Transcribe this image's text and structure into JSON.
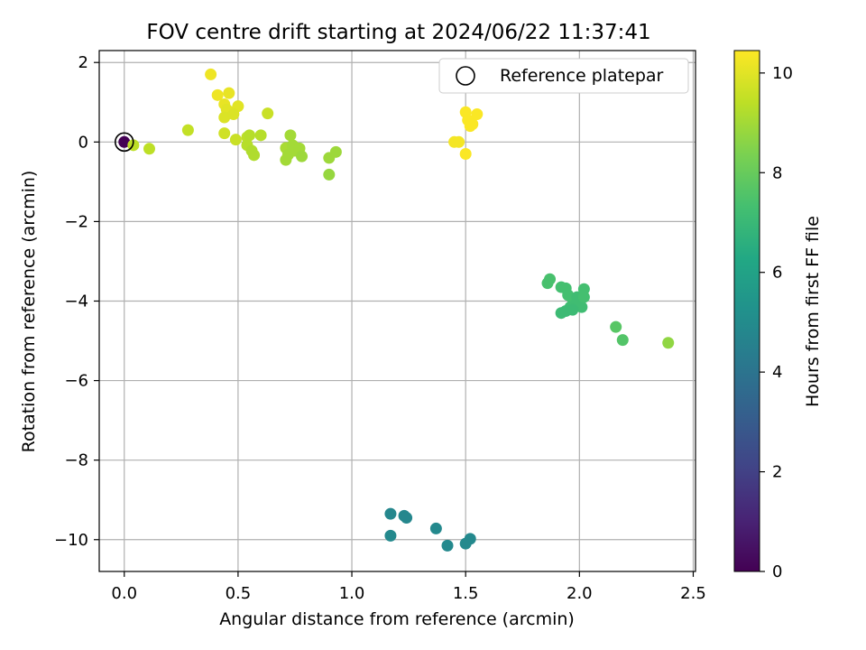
{
  "chart_data": {
    "type": "scatter",
    "title": "FOV centre drift starting at 2024/06/22 11:37:41",
    "xlabel": "Angular distance from reference (arcmin)",
    "ylabel": "Rotation from reference (arcmin)",
    "xlim": [
      -0.11,
      2.51
    ],
    "ylim": [
      -10.8,
      2.3
    ],
    "xticks": [
      0.0,
      0.5,
      1.0,
      1.5,
      2.0,
      2.5
    ],
    "xtick_labels": [
      "0.0",
      "0.5",
      "1.0",
      "1.5",
      "2.0",
      "2.5"
    ],
    "yticks": [
      2,
      0,
      -2,
      -4,
      -6,
      -8,
      -10
    ],
    "ytick_labels": [
      "2",
      "0",
      "−2",
      "−4",
      "−6",
      "−8",
      "−10"
    ],
    "grid": true,
    "legend": {
      "placement": "top-right",
      "entries": [
        "Reference platepar"
      ]
    },
    "reference_point": {
      "x": 0.0,
      "y": 0.0
    },
    "colorbar": {
      "label": "Hours from first FF file",
      "colormap": "viridis",
      "range": [
        0,
        10.45
      ],
      "ticks": [
        0,
        2,
        4,
        6,
        8,
        10
      ],
      "tick_labels": [
        "0",
        "2",
        "4",
        "6",
        "8",
        "10"
      ]
    },
    "series": [
      {
        "color_by": "hours",
        "points": [
          {
            "x": 0.0,
            "y": 0.0,
            "c": 0.0
          },
          {
            "x": 0.04,
            "y": -0.08,
            "c": 9.4
          },
          {
            "x": 0.11,
            "y": -0.17,
            "c": 9.4
          },
          {
            "x": 0.28,
            "y": 0.3,
            "c": 9.5
          },
          {
            "x": 0.38,
            "y": 1.7,
            "c": 10.2
          },
          {
            "x": 0.41,
            "y": 1.18,
            "c": 10.2
          },
          {
            "x": 0.44,
            "y": 0.95,
            "c": 10.1
          },
          {
            "x": 0.46,
            "y": 1.23,
            "c": 10.1
          },
          {
            "x": 0.45,
            "y": 0.82,
            "c": 10.0
          },
          {
            "x": 0.47,
            "y": 0.75,
            "c": 10.0
          },
          {
            "x": 0.5,
            "y": 0.9,
            "c": 10.0
          },
          {
            "x": 0.44,
            "y": 0.62,
            "c": 9.9
          },
          {
            "x": 0.48,
            "y": 0.7,
            "c": 9.9
          },
          {
            "x": 0.44,
            "y": 0.22,
            "c": 9.7
          },
          {
            "x": 0.49,
            "y": 0.06,
            "c": 9.6
          },
          {
            "x": 0.54,
            "y": 0.12,
            "c": 9.4
          },
          {
            "x": 0.55,
            "y": 0.17,
            "c": 9.3
          },
          {
            "x": 0.54,
            "y": -0.08,
            "c": 9.3
          },
          {
            "x": 0.56,
            "y": -0.22,
            "c": 9.2
          },
          {
            "x": 0.57,
            "y": -0.33,
            "c": 9.2
          },
          {
            "x": 0.6,
            "y": 0.17,
            "c": 9.3
          },
          {
            "x": 0.63,
            "y": 0.72,
            "c": 9.6
          },
          {
            "x": 0.71,
            "y": -0.15,
            "c": 9.1
          },
          {
            "x": 0.73,
            "y": 0.17,
            "c": 9.0
          },
          {
            "x": 0.74,
            "y": -0.08,
            "c": 9.0
          },
          {
            "x": 0.72,
            "y": -0.32,
            "c": 9.0
          },
          {
            "x": 0.71,
            "y": -0.45,
            "c": 9.0
          },
          {
            "x": 0.75,
            "y": -0.22,
            "c": 9.0
          },
          {
            "x": 0.77,
            "y": -0.16,
            "c": 9.0
          },
          {
            "x": 0.78,
            "y": -0.36,
            "c": 8.9
          },
          {
            "x": 0.9,
            "y": -0.4,
            "c": 8.9
          },
          {
            "x": 0.93,
            "y": -0.25,
            "c": 8.9
          },
          {
            "x": 0.9,
            "y": -0.82,
            "c": 8.8
          },
          {
            "x": 1.45,
            "y": 0.0,
            "c": 10.3
          },
          {
            "x": 1.47,
            "y": 0.0,
            "c": 10.3
          },
          {
            "x": 1.5,
            "y": -0.3,
            "c": 10.4
          },
          {
            "x": 1.5,
            "y": 0.75,
            "c": 10.4
          },
          {
            "x": 1.51,
            "y": 0.55,
            "c": 10.4
          },
          {
            "x": 1.52,
            "y": 0.4,
            "c": 10.4
          },
          {
            "x": 1.53,
            "y": 0.45,
            "c": 10.4
          },
          {
            "x": 1.55,
            "y": 0.7,
            "c": 10.4
          },
          {
            "x": 1.86,
            "y": -3.55,
            "c": 7.4
          },
          {
            "x": 1.87,
            "y": -3.45,
            "c": 7.4
          },
          {
            "x": 1.92,
            "y": -3.65,
            "c": 7.3
          },
          {
            "x": 1.94,
            "y": -3.68,
            "c": 7.3
          },
          {
            "x": 1.95,
            "y": -3.85,
            "c": 7.3
          },
          {
            "x": 1.97,
            "y": -3.95,
            "c": 7.3
          },
          {
            "x": 1.96,
            "y": -4.15,
            "c": 7.2
          },
          {
            "x": 1.98,
            "y": -4.1,
            "c": 7.2
          },
          {
            "x": 1.99,
            "y": -3.9,
            "c": 7.2
          },
          {
            "x": 2.0,
            "y": -4.05,
            "c": 7.2
          },
          {
            "x": 2.01,
            "y": -4.15,
            "c": 7.2
          },
          {
            "x": 2.02,
            "y": -3.7,
            "c": 7.3
          },
          {
            "x": 2.02,
            "y": -3.9,
            "c": 7.3
          },
          {
            "x": 1.92,
            "y": -4.3,
            "c": 7.1
          },
          {
            "x": 1.94,
            "y": -4.25,
            "c": 7.1
          },
          {
            "x": 1.97,
            "y": -4.22,
            "c": 7.1
          },
          {
            "x": 2.16,
            "y": -4.65,
            "c": 7.7
          },
          {
            "x": 2.19,
            "y": -4.98,
            "c": 7.6
          },
          {
            "x": 2.39,
            "y": -5.05,
            "c": 8.7
          },
          {
            "x": 1.17,
            "y": -9.35,
            "c": 4.8
          },
          {
            "x": 1.23,
            "y": -9.4,
            "c": 4.8
          },
          {
            "x": 1.24,
            "y": -9.45,
            "c": 4.8
          },
          {
            "x": 1.17,
            "y": -9.9,
            "c": 4.9
          },
          {
            "x": 1.37,
            "y": -9.72,
            "c": 4.9
          },
          {
            "x": 1.42,
            "y": -10.15,
            "c": 4.9
          },
          {
            "x": 1.5,
            "y": -10.1,
            "c": 4.9
          },
          {
            "x": 1.52,
            "y": -9.98,
            "c": 4.9
          }
        ]
      }
    ]
  }
}
